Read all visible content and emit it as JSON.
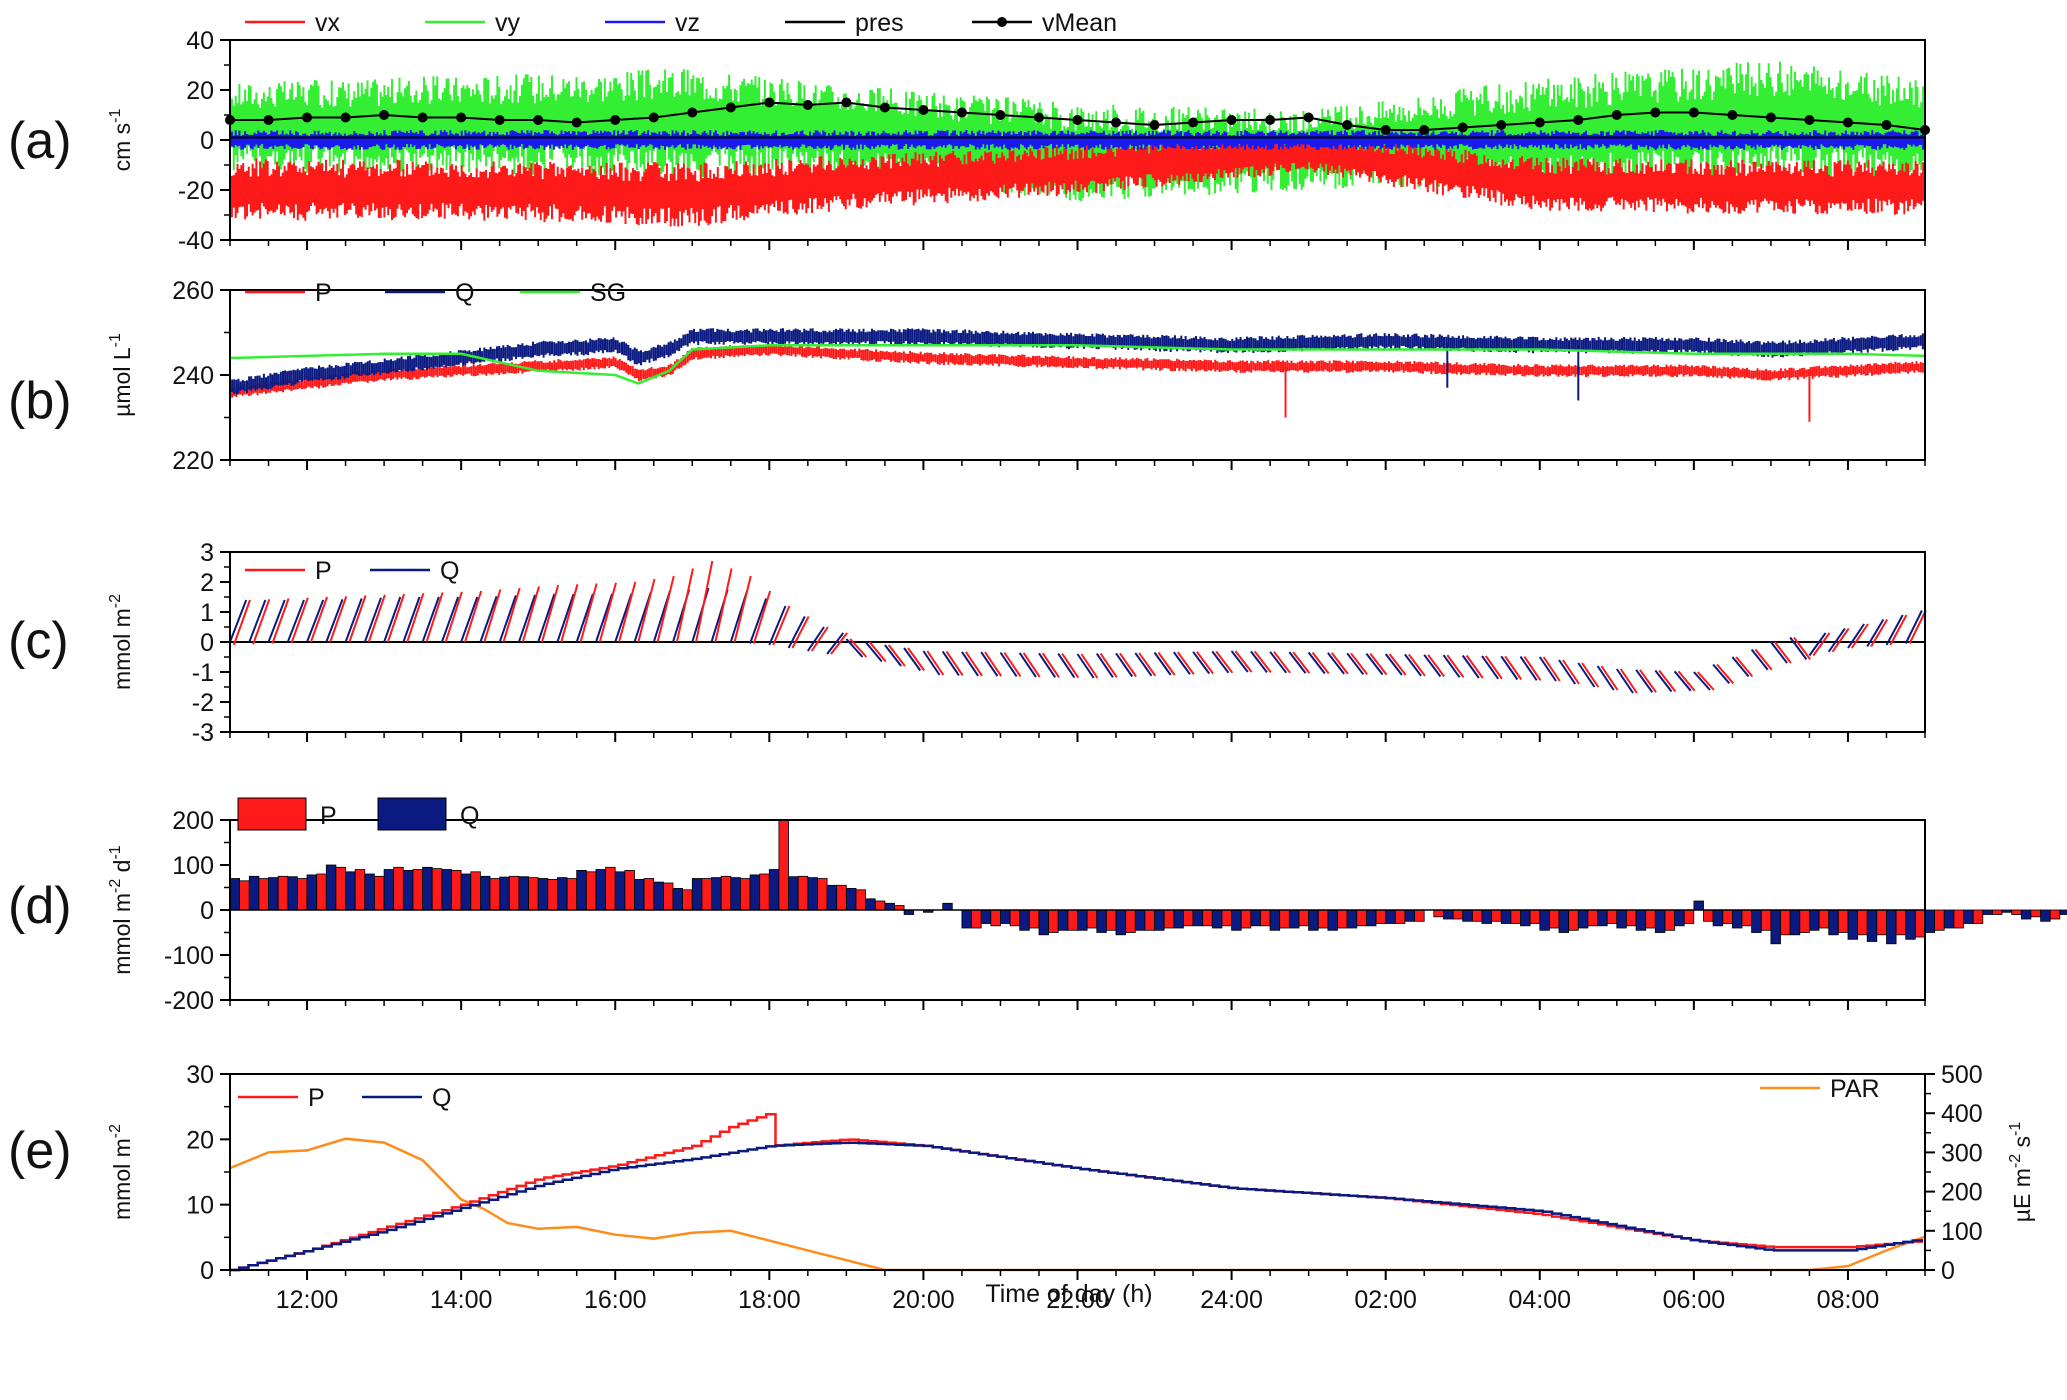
{
  "figure": {
    "xlabel": "Time of day (h)",
    "x_ticks": [
      "12:00",
      "14:00",
      "16:00",
      "18:00",
      "20:00",
      "22:00",
      "24:00",
      "02:00",
      "04:00",
      "06:00",
      "08:00"
    ],
    "x_range_hours": [
      11,
      33
    ],
    "colors": {
      "red": "#ff1a1a",
      "green": "#33ee33",
      "blue": "#1a1aee",
      "navy": "#0a1a80",
      "black": "#000000",
      "orange": "#ff8c1a"
    }
  },
  "chart_data": [
    {
      "id": "a",
      "panel_label": "(a)",
      "type": "line",
      "ylabel": "cm s",
      "ylabel_sup": "-1",
      "ylim": [
        -40,
        40
      ],
      "yticks": [
        -40,
        -20,
        0,
        20,
        40
      ],
      "legend": [
        "vx",
        "vy",
        "vz",
        "pres",
        "vMean"
      ],
      "series": [
        {
          "name": "vx",
          "color": "#ff1a1a",
          "band": {
            "x": [
              11,
              14,
              17,
              19,
              22,
              25,
              28,
              31,
              33
            ],
            "center": [
              -20,
              -20,
              -22,
              -17,
              -12,
              -5,
              -18,
              -19,
              -19
            ],
            "half": [
              13,
              12,
              13,
              11,
              10,
              8,
              11,
              11,
              11
            ]
          }
        },
        {
          "name": "vy",
          "color": "#33ee33",
          "band": {
            "x": [
              11,
              14,
              17,
              19,
              22,
              25,
              28,
              31,
              33
            ],
            "center": [
              5,
              6,
              7,
              4,
              -5,
              -4,
              3,
              8,
              4
            ],
            "half": [
              18,
              20,
              22,
              18,
              20,
              16,
              22,
              24,
              20
            ]
          }
        },
        {
          "name": "vz",
          "color": "#1a1aee",
          "band": {
            "x": [
              11,
              33
            ],
            "center": [
              0,
              0
            ],
            "half": [
              4,
              4
            ]
          }
        },
        {
          "name": "pres",
          "color": "#000000",
          "x": [
            11,
            33
          ],
          "y": [
            1,
            1
          ]
        },
        {
          "name": "vMean",
          "color": "#000000",
          "x": [
            11.0,
            11.5,
            12.0,
            12.5,
            13.0,
            13.5,
            14.0,
            14.5,
            15.0,
            15.5,
            16.0,
            16.5,
            17.0,
            17.5,
            18.0,
            18.5,
            19.0,
            19.5,
            20.0,
            20.5,
            21.0,
            21.5,
            22.0,
            22.5,
            23.0,
            23.5,
            24.0,
            24.5,
            25.0,
            25.5,
            26.0,
            26.5,
            27.0,
            27.5,
            28.0,
            28.5,
            29.0,
            29.5,
            30.0,
            30.5,
            31.0,
            31.5,
            32.0,
            32.5,
            33.0
          ],
          "y": [
            8,
            8,
            9,
            9,
            10,
            9,
            9,
            8,
            8,
            7,
            8,
            9,
            11,
            13,
            15,
            14,
            15,
            13,
            12,
            11,
            10,
            9,
            8,
            7,
            6,
            7,
            8,
            8,
            9,
            6,
            4,
            4,
            5,
            6,
            7,
            8,
            10,
            11,
            11,
            10,
            9,
            8,
            7,
            6,
            4
          ]
        }
      ]
    },
    {
      "id": "b",
      "panel_label": "(b)",
      "type": "line",
      "ylabel": "µmol L",
      "ylabel_sup": "-1",
      "ylim": [
        220,
        260
      ],
      "yticks": [
        220,
        240,
        260
      ],
      "legend": [
        "P",
        "Q",
        "SG"
      ],
      "series": [
        {
          "name": "P",
          "color": "#ff1a1a",
          "band": {
            "x": [
              11,
              12,
              13,
              14,
              15,
              16,
              16.3,
              16.7,
              17,
              18,
              20,
              22,
              24,
              26,
              28,
              30,
              31,
              32,
              33
            ],
            "center": [
              236,
              238,
              240,
              241,
              242,
              243,
              240,
              241,
              245,
              246,
              244,
              243,
              242,
              242,
              241,
              241,
              240,
              241,
              242
            ],
            "half": [
              1.5,
              1.5,
              1.5,
              1.5,
              1.5,
              1.5,
              1.5,
              1.5,
              1.5,
              1.5,
              1.5,
              1.5,
              1.5,
              1.5,
              1.5,
              1.5,
              1.5,
              1.5,
              1.5
            ]
          },
          "spikes": [
            {
              "x": 24.7,
              "y": 230
            },
            {
              "x": 31.5,
              "y": 229
            }
          ]
        },
        {
          "name": "Q",
          "color": "#0a1a80",
          "band": {
            "x": [
              11,
              12,
              13,
              14,
              15,
              16,
              16.3,
              16.7,
              17,
              18,
              20,
              22,
              24,
              26,
              28,
              30,
              31,
              32,
              33
            ],
            "center": [
              237,
              240,
              242,
              244,
              246,
              247,
              244,
              246,
              249,
              249,
              249,
              248,
              247,
              248,
              247,
              247,
              246,
              247,
              248
            ],
            "half": [
              2,
              2,
              2,
              2,
              2,
              2,
              2,
              2,
              2,
              2,
              2,
              2,
              2,
              2,
              2,
              2,
              2,
              2,
              2
            ]
          },
          "spikes": [
            {
              "x": 26.8,
              "y": 237
            },
            {
              "x": 28.5,
              "y": 234
            }
          ]
        },
        {
          "name": "SG",
          "color": "#33ee33",
          "x": [
            11,
            12,
            13,
            14,
            15,
            16,
            16.3,
            16.7,
            17,
            18,
            20,
            22,
            24,
            26,
            28,
            30,
            31,
            32,
            33
          ],
          "y": [
            244,
            244.5,
            245,
            245,
            241,
            240,
            238,
            241,
            246,
            247,
            247,
            247,
            246,
            246,
            246,
            245,
            245,
            245,
            244.5
          ]
        }
      ]
    },
    {
      "id": "c",
      "panel_label": "(c)",
      "type": "line",
      "ylabel": "mmol m",
      "ylabel_sup": "-2",
      "ylim": [
        -3,
        3
      ],
      "yticks": [
        -3,
        -2,
        -1,
        0,
        1,
        2,
        3
      ],
      "legend": [
        "P",
        "Q"
      ],
      "series": [
        {
          "name": "P",
          "color": "#ff1a1a",
          "sawtooth": {
            "x": [
              11,
              12,
              13,
              14,
              15,
              16,
              16.5,
              17,
              17.5,
              18,
              18.5,
              19,
              20,
              22,
              24,
              26,
              28,
              29,
              30,
              31,
              32,
              33
            ],
            "peak": [
              1.4,
              1.5,
              1.6,
              1.7,
              1.9,
              2.0,
              2.2,
              2.7,
              2.2,
              1.2,
              0.5,
              0.1,
              -0.3,
              -0.4,
              -0.3,
              -0.4,
              -0.5,
              -0.9,
              -1.0,
              0.0,
              0.6,
              1.2
            ],
            "trough": [
              -0.1,
              0,
              0,
              0,
              0,
              0,
              0,
              0,
              0,
              -0.1,
              -0.3,
              -0.5,
              -1.1,
              -1.2,
              -1.0,
              -1.1,
              -1.3,
              -1.7,
              -1.6,
              -0.7,
              -0.2,
              0
            ]
          }
        },
        {
          "name": "Q",
          "color": "#0a1a80",
          "sawtooth": {
            "x": [
              11,
              12,
              13,
              14,
              15,
              16,
              16.5,
              17,
              17.5,
              18,
              18.5,
              19,
              20,
              22,
              24,
              26,
              28,
              29,
              30,
              31,
              32,
              33
            ],
            "peak": [
              1.4,
              1.4,
              1.5,
              1.5,
              1.6,
              1.6,
              1.7,
              1.8,
              1.7,
              1.2,
              0.5,
              0.1,
              -0.3,
              -0.4,
              -0.3,
              -0.4,
              -0.5,
              -0.9,
              -1.0,
              0.0,
              0.6,
              1.2
            ],
            "trough": [
              0,
              0,
              0,
              0,
              0,
              0,
              0,
              0,
              0,
              -0.1,
              -0.3,
              -0.5,
              -1.1,
              -1.2,
              -1.0,
              -1.1,
              -1.3,
              -1.7,
              -1.6,
              -0.7,
              -0.2,
              0
            ]
          }
        }
      ]
    },
    {
      "id": "d",
      "panel_label": "(d)",
      "type": "bar",
      "ylabel": "mmol m",
      "ylabel_sup": "-2",
      "ylabel_mid": " d",
      "ylabel_sup2": "-1",
      "ylim": [
        -200,
        200
      ],
      "yticks": [
        -200,
        -100,
        0,
        100,
        200
      ],
      "legend": [
        "P",
        "Q"
      ],
      "x_start": 11,
      "x_step": 0.25,
      "series": [
        {
          "name": "P",
          "color": "#ff1a1a",
          "values": [
            65,
            70,
            75,
            70,
            80,
            95,
            90,
            75,
            95,
            90,
            92,
            88,
            85,
            70,
            75,
            72,
            68,
            70,
            85,
            95,
            88,
            70,
            60,
            45,
            70,
            75,
            70,
            80,
            200,
            75,
            70,
            55,
            45,
            20,
            10,
            0,
            0,
            0,
            -40,
            -35,
            -35,
            -40,
            -50,
            -45,
            -40,
            -45,
            -50,
            -45,
            -40,
            -35,
            -35,
            -35,
            -40,
            -35,
            -40,
            -35,
            -40,
            -40,
            -35,
            -30,
            -30,
            -25,
            -15,
            -20,
            -25,
            -25,
            -30,
            -30,
            -40,
            -45,
            -35,
            -30,
            -35,
            -40,
            -45,
            -30,
            -25,
            -30,
            -35,
            -45,
            -55,
            -50,
            -40,
            -50,
            -55,
            -55,
            -55,
            -60,
            -45,
            -40,
            -30,
            -10,
            -10,
            -15,
            -20,
            -10,
            0,
            10,
            30,
            60,
            60
          ]
        },
        {
          "name": "Q",
          "color": "#0a1a80",
          "values": [
            70,
            75,
            72,
            74,
            78,
            100,
            85,
            80,
            90,
            88,
            95,
            90,
            80,
            75,
            73,
            74,
            70,
            72,
            88,
            90,
            85,
            68,
            62,
            48,
            70,
            72,
            72,
            78,
            90,
            74,
            72,
            55,
            48,
            25,
            15,
            -10,
            -5,
            15,
            -40,
            -30,
            -30,
            -45,
            -55,
            -45,
            -45,
            -50,
            -55,
            -45,
            -45,
            -40,
            -35,
            -40,
            -45,
            -35,
            -45,
            -40,
            -45,
            -45,
            -40,
            -35,
            -30,
            -25,
            0,
            -20,
            -25,
            -30,
            -30,
            -35,
            -45,
            -50,
            -40,
            -35,
            -40,
            -45,
            -50,
            -35,
            20,
            -35,
            -40,
            -50,
            -75,
            -55,
            -45,
            -55,
            -65,
            -70,
            -75,
            -65,
            -50,
            -40,
            -30,
            -10,
            -5,
            -20,
            -25,
            -10,
            0,
            15,
            35,
            65,
            60
          ]
        }
      ]
    },
    {
      "id": "e",
      "panel_label": "(e)",
      "type": "line",
      "ylabel": "mmol m",
      "ylabel_sup": "-2",
      "ylim": [
        0,
        30
      ],
      "yticks": [
        0,
        10,
        20,
        30
      ],
      "y2label": "µE m",
      "y2label_sup": "-2",
      "y2label_mid": " s",
      "y2label_sup2": "-1",
      "y2lim": [
        0,
        500
      ],
      "y2ticks": [
        0,
        100,
        200,
        300,
        400,
        500
      ],
      "legend": [
        "P",
        "Q",
        "PAR"
      ],
      "series": [
        {
          "name": "P",
          "color": "#ff1a1a",
          "axis": "left",
          "x": [
            11,
            12,
            13,
            14,
            15,
            16,
            17,
            17.5,
            18,
            18.01,
            19,
            20,
            22,
            24,
            26,
            28,
            30,
            31,
            32,
            33
          ],
          "y": [
            0,
            3,
            6.5,
            10,
            14,
            16,
            19,
            22,
            24,
            19,
            20,
            19,
            15.5,
            12.5,
            11,
            8.5,
            4.5,
            3.5,
            3.5,
            4.5
          ]
        },
        {
          "name": "Q",
          "color": "#0a1a80",
          "axis": "left",
          "x": [
            11,
            12,
            13,
            14,
            15,
            16,
            17,
            18,
            19,
            20,
            22,
            24,
            26,
            28,
            30,
            31,
            32,
            33
          ],
          "y": [
            0,
            3,
            6,
            9.5,
            13,
            15.5,
            17,
            19,
            19.5,
            19,
            15.5,
            12.5,
            11,
            9,
            4.5,
            3,
            3,
            4.8
          ]
        },
        {
          "name": "PAR",
          "color": "#ff8c1a",
          "axis": "right",
          "x": [
            11,
            11.5,
            12,
            12.5,
            13,
            13.5,
            14,
            14.3,
            14.6,
            15,
            15.5,
            16,
            16.5,
            17,
            17.5,
            18,
            18.5,
            19,
            19.5,
            31.5,
            32,
            32.5,
            33
          ],
          "y": [
            260,
            300,
            305,
            335,
            325,
            280,
            180,
            155,
            120,
            105,
            110,
            90,
            80,
            95,
            100,
            75,
            50,
            25,
            0,
            0,
            10,
            50,
            85
          ]
        }
      ]
    }
  ]
}
